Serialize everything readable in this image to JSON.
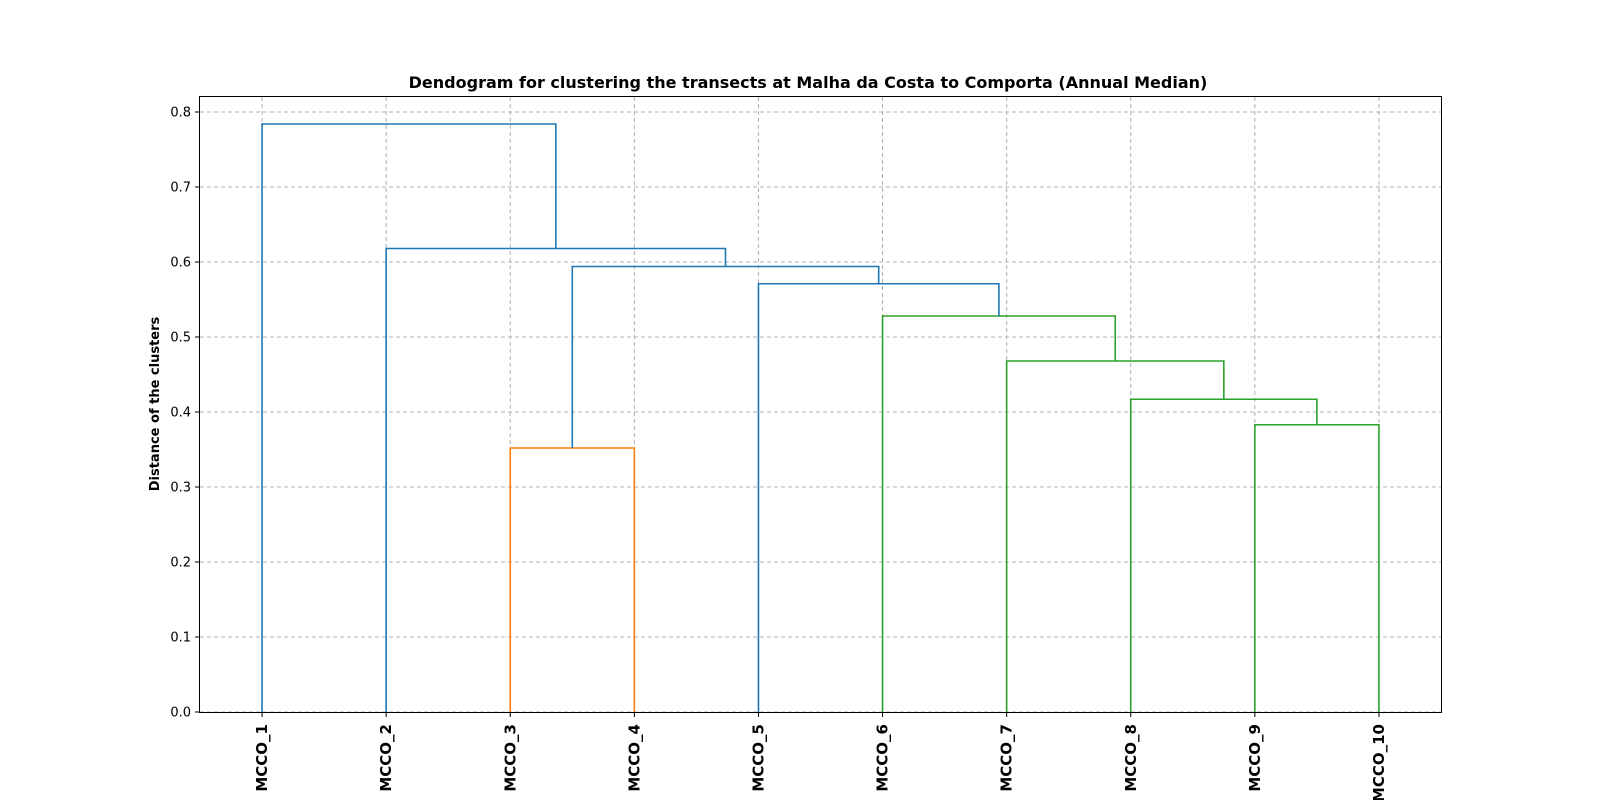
{
  "chart_data": {
    "type": "dendrogram",
    "title": "Dendogram for clustering the transects at Malha da Costa to Comporta (Annual Median)",
    "xlabel": "",
    "ylabel": "Distance of the clusters",
    "ylim": [
      0,
      0.82
    ],
    "yticks": [
      "0.0",
      "0.1",
      "0.2",
      "0.3",
      "0.4",
      "0.5",
      "0.6",
      "0.7",
      "0.8"
    ],
    "grid": true,
    "leaves": [
      "MCCO_1",
      "MCCO_2",
      "MCCO_3",
      "MCCO_4",
      "MCCO_5",
      "MCCO_6",
      "MCCO_7",
      "MCCO_8",
      "MCCO_9",
      "MCCO_10"
    ],
    "colors": {
      "above_threshold": "#1f77b4",
      "cluster_1": "#ff7f0e",
      "cluster_2": "#2ca02c"
    },
    "merges": [
      {
        "left": "MCCO_3",
        "right": "MCCO_4",
        "distance": 0.352,
        "color": "#ff7f0e"
      },
      {
        "left": "MCCO_9",
        "right": "MCCO_10",
        "distance": 0.383,
        "color": "#2ca02c"
      },
      {
        "left": "MCCO_8",
        "right": "(MCCO_9, MCCO_10)",
        "distance": 0.417,
        "color": "#2ca02c"
      },
      {
        "left": "MCCO_7",
        "right": "(MCCO_8, MCCO_9, MCCO_10)",
        "distance": 0.468,
        "color": "#2ca02c"
      },
      {
        "left": "MCCO_6",
        "right": "(MCCO_7 ... MCCO_10)",
        "distance": 0.528,
        "color": "#2ca02c"
      },
      {
        "left": "MCCO_5",
        "right": "(MCCO_6 ... MCCO_10)",
        "distance": 0.571,
        "color": "#1f77b4"
      },
      {
        "left": "(MCCO_3, MCCO_4)",
        "right": "(MCCO_5 ... MCCO_10)",
        "distance": 0.594,
        "color": "#1f77b4"
      },
      {
        "left": "MCCO_2",
        "right": "(MCCO_3 ... MCCO_10)",
        "distance": 0.618,
        "color": "#1f77b4"
      },
      {
        "left": "MCCO_1",
        "right": "(MCCO_2 ... MCCO_10)",
        "distance": 0.784,
        "color": "#1f77b4"
      }
    ]
  }
}
